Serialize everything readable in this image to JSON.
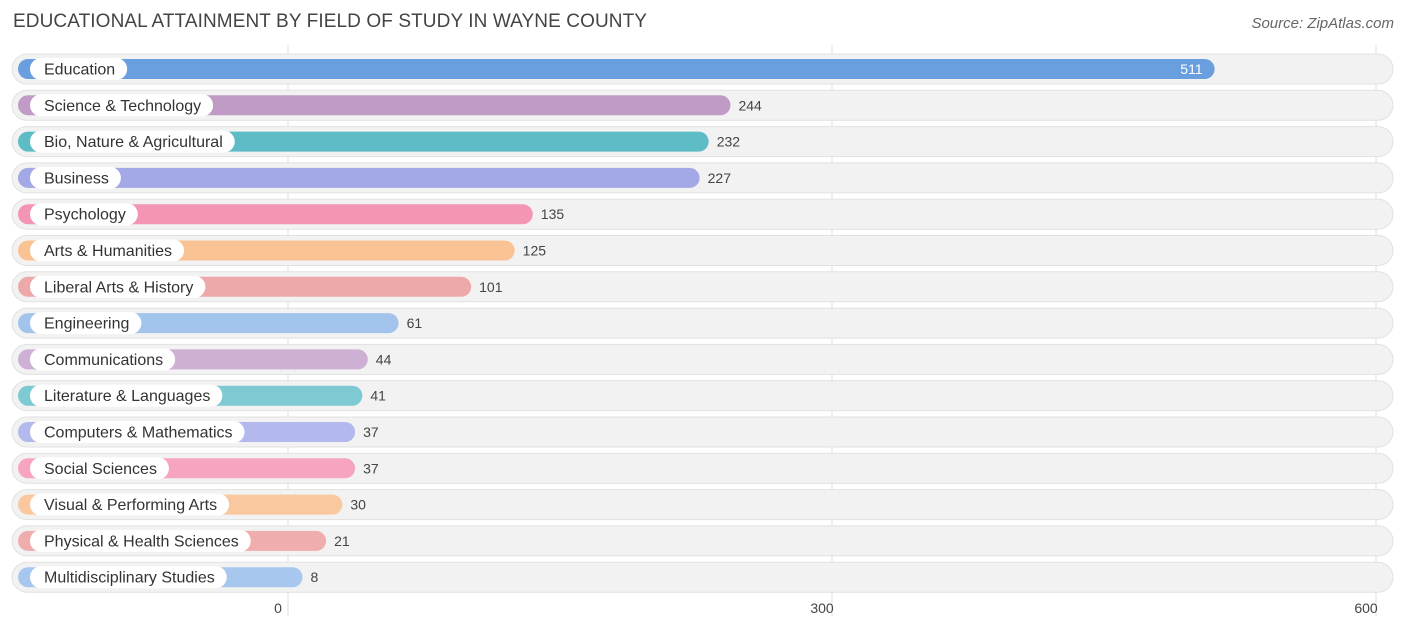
{
  "header": {
    "title": "EDUCATIONAL ATTAINMENT BY FIELD OF STUDY IN WAYNE COUNTY",
    "source": "Source: ZipAtlas.com"
  },
  "chart_data": {
    "type": "bar",
    "orientation": "horizontal",
    "title": "EDUCATIONAL ATTAINMENT BY FIELD OF STUDY IN WAYNE COUNTY",
    "xlim": [
      0,
      600
    ],
    "x_ticks": [
      0,
      300,
      600
    ],
    "x_tick_labels": [
      "0",
      "300",
      "600"
    ],
    "grid": true,
    "categories": [
      "Education",
      "Science & Technology",
      "Bio, Nature & Agricultural",
      "Business",
      "Psychology",
      "Arts & Humanities",
      "Liberal Arts & History",
      "Engineering",
      "Communications",
      "Literature & Languages",
      "Computers & Mathematics",
      "Social Sciences",
      "Visual & Performing Arts",
      "Physical & Health Sciences",
      "Multidisciplinary Studies"
    ],
    "values": [
      511,
      244,
      232,
      227,
      135,
      125,
      101,
      61,
      44,
      41,
      37,
      37,
      30,
      21,
      8
    ],
    "value_labels": [
      "511",
      "244",
      "232",
      "227",
      "135",
      "125",
      "101",
      "61",
      "44",
      "41",
      "37",
      "37",
      "30",
      "21",
      "8"
    ],
    "colors": [
      "#6a9fdf",
      "#c09bc6",
      "#5dbcc6",
      "#a2a9e6",
      "#f595b4",
      "#f9c394",
      "#eda9a9",
      "#a2c4ec",
      "#cdb0d3",
      "#7dcad2",
      "#b4b9ed",
      "#f6a4c0",
      "#f9c89e",
      "#f0adae",
      "#a8c7ee"
    ]
  }
}
